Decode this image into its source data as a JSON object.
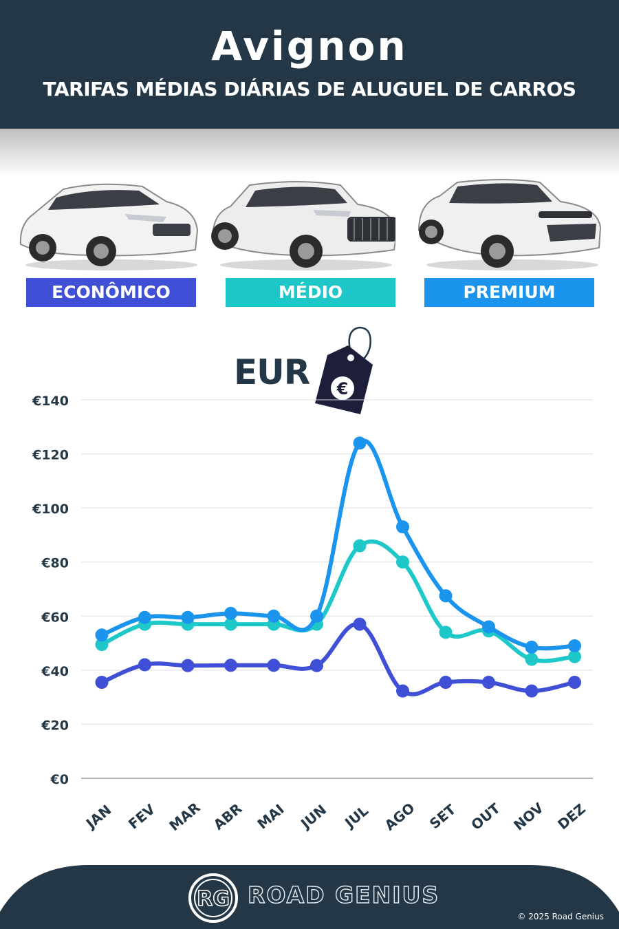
{
  "header": {
    "title": "Avignon",
    "subtitle": "TARIFAS MÉDIAS DIÁRIAS DE ALUGUEL DE CARROS"
  },
  "categories": [
    {
      "label": "ECONÔMICO",
      "color": "#3f4fd6"
    },
    {
      "label": "MÉDIO",
      "color": "#1ec8c8"
    },
    {
      "label": "PREMIUM",
      "color": "#1a94ec"
    }
  ],
  "currency_label": "EUR",
  "price_tag_symbol": "€",
  "brand": {
    "logo_text": "RG",
    "name": "ROAD GENIUS",
    "copyright": "© 2025 Road Genius"
  },
  "chart_data": {
    "type": "line",
    "categories": [
      "JAN",
      "FEV",
      "MAR",
      "ABR",
      "MAI",
      "JUN",
      "JUL",
      "AGO",
      "SET",
      "OUT",
      "NOV",
      "DEZ"
    ],
    "ylim": [
      0,
      140
    ],
    "yticks": [
      0,
      20,
      40,
      60,
      80,
      100,
      120,
      140
    ],
    "ytick_labels": [
      "€0",
      "€20",
      "€40",
      "€60",
      "€80",
      "€100",
      "€120",
      "€140"
    ],
    "grid": true,
    "legend": "top",
    "series": [
      {
        "name": "ECONÔMICO",
        "color": "#3f4fd6",
        "values": [
          35.5,
          42,
          41.7,
          41.8,
          41.8,
          41.7,
          57,
          32.3,
          35.5,
          35.5,
          32.3,
          35.5
        ]
      },
      {
        "name": "MÉDIO",
        "color": "#1ec8c8",
        "values": [
          49.5,
          57,
          57,
          57,
          57,
          57,
          86,
          80,
          54,
          54.5,
          44,
          45
        ]
      },
      {
        "name": "PREMIUM",
        "color": "#1a94ec",
        "values": [
          53,
          59.5,
          59.5,
          61,
          60,
          60,
          124,
          93,
          67.5,
          56,
          48.5,
          49
        ]
      }
    ]
  }
}
